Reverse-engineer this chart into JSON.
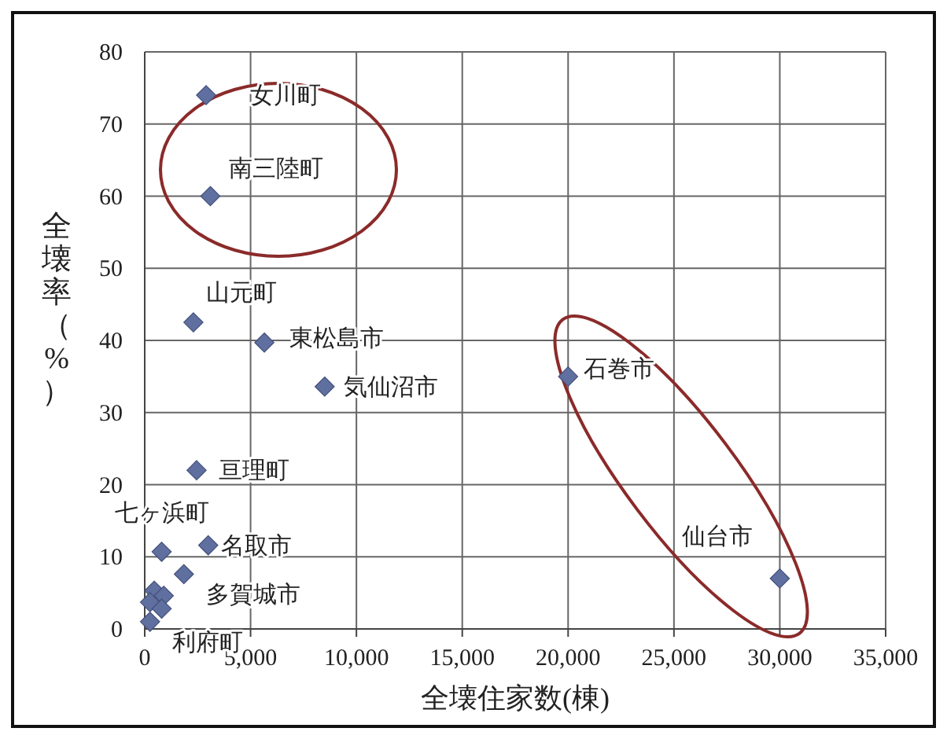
{
  "chart_data": {
    "type": "scatter",
    "xlabel": "全壊住家数(棟)",
    "ylabel": "全壊率（%）",
    "xlim": [
      0,
      35000
    ],
    "xticks": [
      {
        "value": 0,
        "label": "0"
      },
      {
        "value": 5000,
        "label": "5,000"
      },
      {
        "value": 10000,
        "label": "10,000"
      },
      {
        "value": 15000,
        "label": "15,000"
      },
      {
        "value": 20000,
        "label": "20,000"
      },
      {
        "value": 25000,
        "label": "25,000"
      },
      {
        "value": 30000,
        "label": "30,000"
      },
      {
        "value": 35000,
        "label": "35,000"
      }
    ],
    "ylim": [
      0,
      80
    ],
    "yticks": [
      0,
      10,
      20,
      30,
      40,
      50,
      60,
      70,
      80
    ],
    "grid": true,
    "marker": "diamond",
    "series": [
      {
        "color": "#5f6f9f",
        "x": [
          2900,
          3100,
          2300,
          5650,
          8500,
          2450,
          800,
          3000,
          1850,
          450,
          900,
          250,
          800,
          250,
          20000,
          30000
        ],
        "values": [
          74,
          60,
          42.5,
          39.7,
          33.6,
          22,
          10.7,
          11.6,
          7.6,
          5.3,
          4.6,
          3.7,
          2.8,
          1,
          35,
          7
        ]
      }
    ],
    "annotations": [
      {
        "text": "女川町",
        "x": 2900,
        "y": 74
      },
      {
        "text": "南三陸町",
        "x": 3100,
        "y": 60
      },
      {
        "text": "山元町",
        "x": 2300,
        "y": 42.5
      },
      {
        "text": "東松島市",
        "x": 5650,
        "y": 39.7
      },
      {
        "text": "気仙沼市",
        "x": 8500,
        "y": 33.6
      },
      {
        "text": "亘理町",
        "x": 2450,
        "y": 22
      },
      {
        "text": "七ヶ浜町",
        "x": 800,
        "y": 10.7
      },
      {
        "text": "名取市",
        "x": 3000,
        "y": 11.6
      },
      {
        "text": "多賀城市",
        "x": 1850,
        "y": 7.6
      },
      {
        "text": "利府町",
        "x": 250,
        "y": 1
      },
      {
        "text": "石巻市",
        "x": 20000,
        "y": 35
      },
      {
        "text": "仙台市",
        "x": 30000,
        "y": 7
      }
    ]
  }
}
